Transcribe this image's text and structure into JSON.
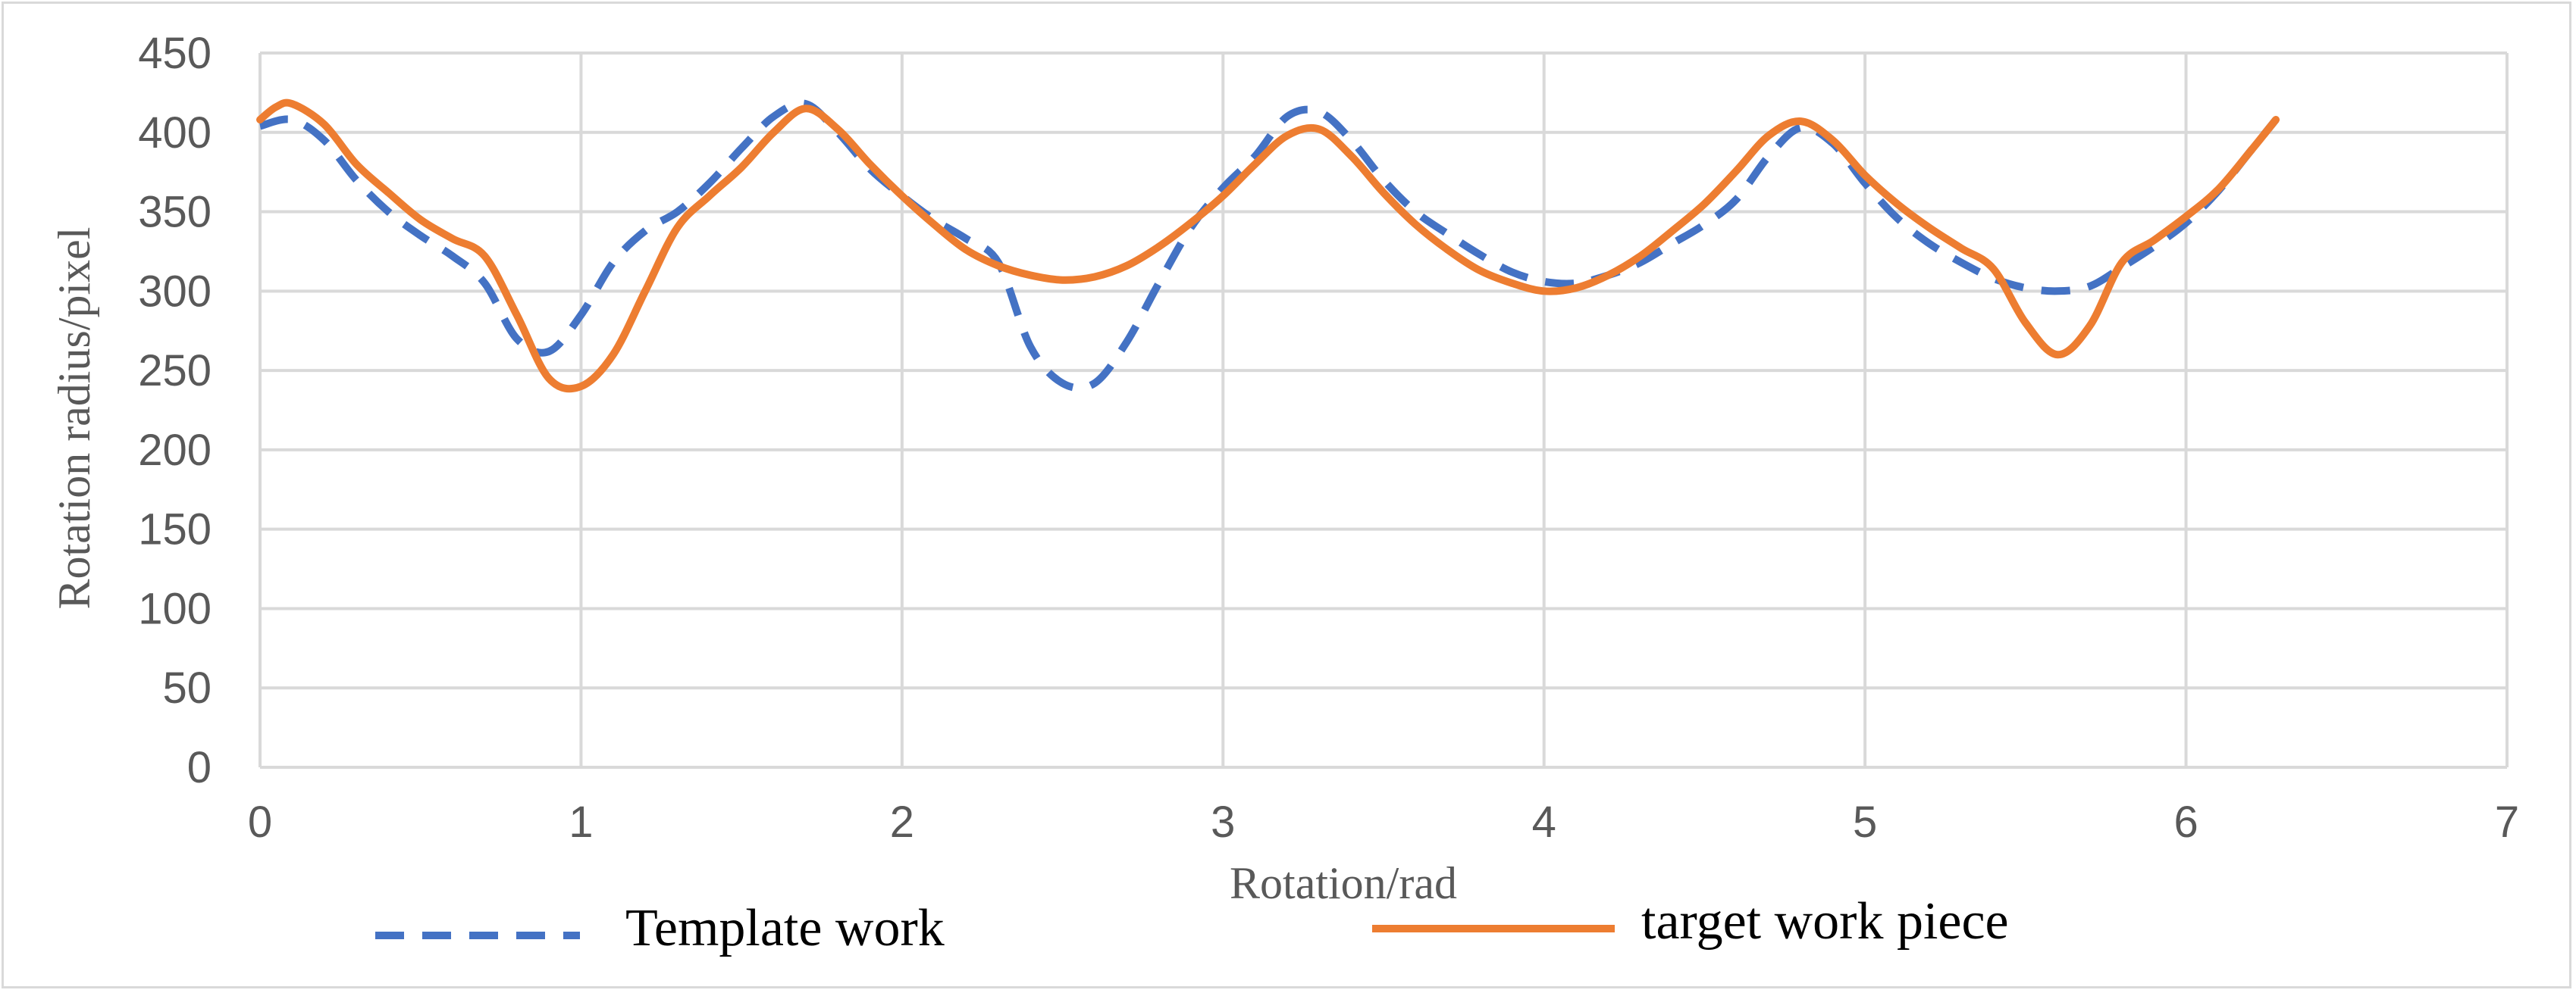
{
  "chart_data": {
    "type": "line",
    "title": "",
    "xlabel": "Rotation/rad",
    "ylabel": "Rotation radius/pixel",
    "xlim": [
      0,
      7
    ],
    "ylim": [
      0,
      450
    ],
    "x_ticks": [
      0,
      1,
      2,
      3,
      4,
      5,
      6,
      7
    ],
    "y_ticks": [
      0,
      50,
      100,
      150,
      200,
      250,
      300,
      350,
      400,
      450
    ],
    "grid": true,
    "legend_position": "bottom",
    "series": [
      {
        "name": "Template work",
        "color": "#4472c4",
        "style": "dashed",
        "points": [
          [
            0,
            404
          ],
          [
            0.1,
            408
          ],
          [
            0.2,
            395
          ],
          [
            0.3,
            370
          ],
          [
            0.4,
            350
          ],
          [
            0.5,
            335
          ],
          [
            0.6,
            322
          ],
          [
            0.7,
            305
          ],
          [
            0.8,
            270
          ],
          [
            0.9,
            262
          ],
          [
            1.0,
            285
          ],
          [
            1.1,
            318
          ],
          [
            1.2,
            338
          ],
          [
            1.3,
            350
          ],
          [
            1.4,
            368
          ],
          [
            1.5,
            390
          ],
          [
            1.6,
            410
          ],
          [
            1.7,
            418
          ],
          [
            1.8,
            400
          ],
          [
            1.9,
            377
          ],
          [
            2.0,
            360
          ],
          [
            2.1,
            345
          ],
          [
            2.2,
            333
          ],
          [
            2.3,
            318
          ],
          [
            2.4,
            265
          ],
          [
            2.5,
            242
          ],
          [
            2.6,
            242
          ],
          [
            2.7,
            268
          ],
          [
            2.8,
            305
          ],
          [
            2.9,
            340
          ],
          [
            3.0,
            365
          ],
          [
            3.1,
            385
          ],
          [
            3.2,
            410
          ],
          [
            3.3,
            413
          ],
          [
            3.4,
            395
          ],
          [
            3.5,
            370
          ],
          [
            3.6,
            350
          ],
          [
            3.7,
            336
          ],
          [
            3.8,
            323
          ],
          [
            3.9,
            312
          ],
          [
            4.0,
            306
          ],
          [
            4.1,
            305
          ],
          [
            4.2,
            310
          ],
          [
            4.3,
            318
          ],
          [
            4.4,
            330
          ],
          [
            4.5,
            342
          ],
          [
            4.6,
            358
          ],
          [
            4.7,
            385
          ],
          [
            4.8,
            403
          ],
          [
            4.9,
            393
          ],
          [
            5.0,
            368
          ],
          [
            5.1,
            346
          ],
          [
            5.2,
            330
          ],
          [
            5.3,
            318
          ],
          [
            5.4,
            308
          ],
          [
            5.5,
            302
          ],
          [
            5.6,
            300
          ],
          [
            5.7,
            303
          ],
          [
            5.8,
            315
          ],
          [
            5.9,
            328
          ],
          [
            6.0,
            343
          ],
          [
            6.1,
            363
          ],
          [
            6.2,
            388
          ],
          [
            6.28,
            408
          ]
        ]
      },
      {
        "name": "target work piece",
        "color": "#ed7d31",
        "style": "solid",
        "points": [
          [
            0,
            408
          ],
          [
            0.05,
            416
          ],
          [
            0.1,
            418
          ],
          [
            0.2,
            405
          ],
          [
            0.3,
            380
          ],
          [
            0.4,
            362
          ],
          [
            0.5,
            345
          ],
          [
            0.6,
            333
          ],
          [
            0.7,
            322
          ],
          [
            0.8,
            285
          ],
          [
            0.9,
            245
          ],
          [
            1.0,
            240
          ],
          [
            1.1,
            260
          ],
          [
            1.2,
            300
          ],
          [
            1.3,
            340
          ],
          [
            1.4,
            360
          ],
          [
            1.5,
            378
          ],
          [
            1.6,
            400
          ],
          [
            1.7,
            415
          ],
          [
            1.8,
            402
          ],
          [
            1.9,
            380
          ],
          [
            2.0,
            360
          ],
          [
            2.1,
            342
          ],
          [
            2.2,
            326
          ],
          [
            2.3,
            316
          ],
          [
            2.4,
            310
          ],
          [
            2.5,
            307
          ],
          [
            2.6,
            309
          ],
          [
            2.7,
            316
          ],
          [
            2.8,
            328
          ],
          [
            2.9,
            343
          ],
          [
            3.0,
            360
          ],
          [
            3.1,
            380
          ],
          [
            3.2,
            398
          ],
          [
            3.3,
            402
          ],
          [
            3.4,
            385
          ],
          [
            3.5,
            362
          ],
          [
            3.6,
            342
          ],
          [
            3.7,
            326
          ],
          [
            3.8,
            313
          ],
          [
            3.9,
            305
          ],
          [
            4.0,
            300
          ],
          [
            4.1,
            302
          ],
          [
            4.2,
            310
          ],
          [
            4.3,
            322
          ],
          [
            4.4,
            338
          ],
          [
            4.5,
            355
          ],
          [
            4.6,
            376
          ],
          [
            4.7,
            398
          ],
          [
            4.8,
            407
          ],
          [
            4.9,
            395
          ],
          [
            5.0,
            373
          ],
          [
            5.1,
            355
          ],
          [
            5.2,
            340
          ],
          [
            5.3,
            327
          ],
          [
            5.4,
            314
          ],
          [
            5.5,
            280
          ],
          [
            5.6,
            260
          ],
          [
            5.7,
            278
          ],
          [
            5.8,
            318
          ],
          [
            5.9,
            332
          ],
          [
            6.0,
            347
          ],
          [
            6.1,
            364
          ],
          [
            6.2,
            388
          ],
          [
            6.28,
            408
          ]
        ]
      }
    ]
  }
}
